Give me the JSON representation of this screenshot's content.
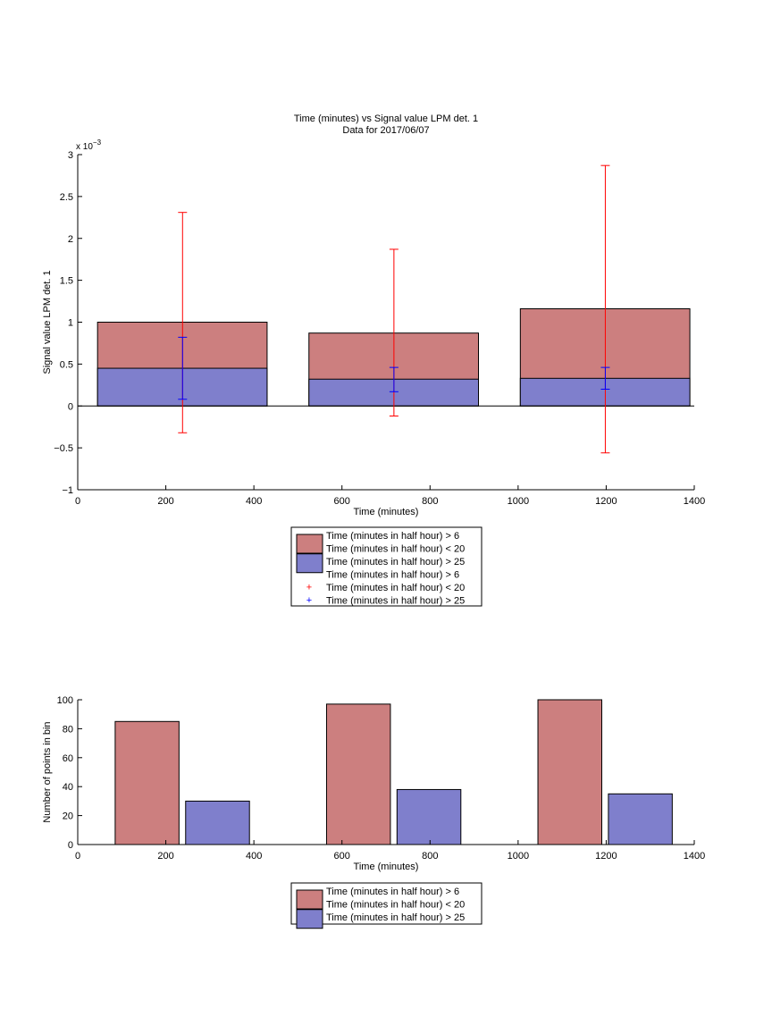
{
  "chart_data": [
    {
      "type": "bar",
      "title": "Time (minutes) vs Signal value LPM det. 1",
      "subtitle": "Data for 2017/06/07",
      "xlabel": "Time (minutes)",
      "ylabel": "Signal value LPM det. 1",
      "y_exponent_label": "x 10",
      "y_exponent": "−3",
      "xlim": [
        0,
        1400
      ],
      "ylim": [
        -1,
        3
      ],
      "x_ticks": [
        "0",
        "200",
        "400",
        "600",
        "800",
        "1000",
        "1200",
        "1400"
      ],
      "y_ticks": [
        "−1",
        "−0.5",
        "0",
        "0.5",
        "1",
        "1.5",
        "2",
        "2.5",
        "3"
      ],
      "grid": false,
      "legend_position": "below",
      "bar_series": [
        {
          "label": [
            "Time (minutes in half hour) > 6",
            "Time (minutes in half hour) < 20"
          ],
          "color": "#cc7f7f",
          "bars": [
            {
              "x_start": 45,
              "x_end": 430,
              "value": 1.0
            },
            {
              "x_start": 525,
              "x_end": 910,
              "value": 0.87
            },
            {
              "x_start": 1005,
              "x_end": 1390,
              "value": 1.16
            }
          ]
        },
        {
          "label": [
            "Time (minutes in half hour) > 25"
          ],
          "color": "#7f7fcc",
          "bars": [
            {
              "x_start": 45,
              "x_end": 430,
              "value": 0.45
            },
            {
              "x_start": 525,
              "x_end": 910,
              "value": 0.32
            },
            {
              "x_start": 1005,
              "x_end": 1390,
              "value": 0.33
            }
          ]
        }
      ],
      "errorbar_series": [
        {
          "label": [
            "Time (minutes in half hour) > 6",
            "Time (minutes in half hour) < 20"
          ],
          "color": "#ff0000",
          "marker": "+",
          "points": [
            {
              "x": 238,
              "low": -0.32,
              "high": 2.31
            },
            {
              "x": 718,
              "low": -0.12,
              "high": 1.87
            },
            {
              "x": 1198,
              "low": -0.56,
              "high": 2.87
            }
          ]
        },
        {
          "label": [
            "Time (minutes in half hour) > 25"
          ],
          "color": "#0000ff",
          "marker": "+",
          "points": [
            {
              "x": 238,
              "low": 0.08,
              "high": 0.82
            },
            {
              "x": 718,
              "low": 0.17,
              "high": 0.46
            },
            {
              "x": 1198,
              "low": 0.2,
              "high": 0.46
            }
          ]
        }
      ]
    },
    {
      "type": "bar",
      "xlabel": "Time (minutes)",
      "ylabel": "Number of points in bin",
      "xlim": [
        0,
        1400
      ],
      "ylim": [
        0,
        100
      ],
      "x_ticks": [
        "0",
        "200",
        "400",
        "600",
        "800",
        "1000",
        "1200",
        "1400"
      ],
      "y_ticks": [
        "0",
        "20",
        "40",
        "60",
        "80",
        "100"
      ],
      "grid": false,
      "legend_position": "below",
      "bar_series": [
        {
          "label": [
            "Time (minutes in half hour) > 6",
            "Time (minutes in half hour) < 20"
          ],
          "color": "#cc7f7f",
          "bars": [
            {
              "x_start": 85,
              "x_end": 230,
              "value": 85
            },
            {
              "x_start": 565,
              "x_end": 710,
              "value": 97
            },
            {
              "x_start": 1045,
              "x_end": 1190,
              "value": 100
            }
          ]
        },
        {
          "label": [
            "Time (minutes in half hour) > 25"
          ],
          "color": "#7f7fcc",
          "bars": [
            {
              "x_start": 245,
              "x_end": 390,
              "value": 30
            },
            {
              "x_start": 725,
              "x_end": 870,
              "value": 38
            },
            {
              "x_start": 1205,
              "x_end": 1350,
              "value": 35
            }
          ]
        }
      ]
    }
  ]
}
